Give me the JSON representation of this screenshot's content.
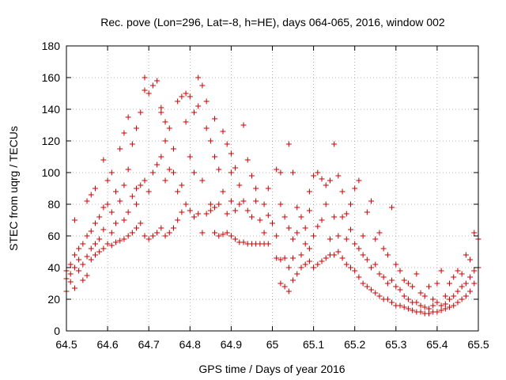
{
  "chart_data": {
    "type": "scatter",
    "title": "Rec. pove (Lon=296, Lat=-8, h=HE), days 064-065, 2016, window 002",
    "xlabel": "GPS time / Days of year 2016",
    "ylabel": "STEC from uqrg / TECUs",
    "xlim": [
      64.5,
      65.5
    ],
    "ylim": [
      0,
      180
    ],
    "xticks": [
      "64.5",
      "64.6",
      "64.7",
      "64.8",
      "64.9",
      "65",
      "65.1",
      "65.2",
      "65.3",
      "65.4",
      "65.5"
    ],
    "yticks": [
      "0",
      "20",
      "40",
      "60",
      "80",
      "100",
      "120",
      "140",
      "160",
      "180"
    ],
    "grid": true,
    "marker": "+",
    "color": "#cc0000",
    "points": [
      [
        64.5,
        25
      ],
      [
        64.5,
        33
      ],
      [
        64.5,
        38
      ],
      [
        64.51,
        31
      ],
      [
        64.51,
        36
      ],
      [
        64.51,
        42
      ],
      [
        64.52,
        27
      ],
      [
        64.52,
        40
      ],
      [
        64.52,
        48
      ],
      [
        64.52,
        70
      ],
      [
        64.53,
        38
      ],
      [
        64.53,
        45
      ],
      [
        64.53,
        52
      ],
      [
        64.54,
        32
      ],
      [
        64.54,
        42
      ],
      [
        64.54,
        55
      ],
      [
        64.55,
        35
      ],
      [
        64.55,
        47
      ],
      [
        64.55,
        60
      ],
      [
        64.55,
        82
      ],
      [
        64.56,
        45
      ],
      [
        64.56,
        52
      ],
      [
        64.56,
        63
      ],
      [
        64.56,
        86
      ],
      [
        64.57,
        48
      ],
      [
        64.57,
        55
      ],
      [
        64.57,
        68
      ],
      [
        64.57,
        90
      ],
      [
        64.58,
        50
      ],
      [
        64.58,
        58
      ],
      [
        64.58,
        72
      ],
      [
        64.59,
        108
      ],
      [
        64.59,
        52
      ],
      [
        64.59,
        64
      ],
      [
        64.59,
        78
      ],
      [
        64.6,
        55
      ],
      [
        64.6,
        80
      ],
      [
        64.6,
        95
      ],
      [
        64.61,
        54
      ],
      [
        64.61,
        62
      ],
      [
        64.61,
        75
      ],
      [
        64.61,
        100
      ],
      [
        64.62,
        56
      ],
      [
        64.62,
        68
      ],
      [
        64.62,
        88
      ],
      [
        64.63,
        57
      ],
      [
        64.63,
        82
      ],
      [
        64.63,
        115
      ],
      [
        64.64,
        58
      ],
      [
        64.64,
        70
      ],
      [
        64.64,
        92
      ],
      [
        64.64,
        125
      ],
      [
        64.65,
        60
      ],
      [
        64.65,
        75
      ],
      [
        64.65,
        135
      ],
      [
        64.65,
        102
      ],
      [
        64.66,
        62
      ],
      [
        64.66,
        85
      ],
      [
        64.66,
        118
      ],
      [
        64.67,
        65
      ],
      [
        64.67,
        80
      ],
      [
        64.67,
        90
      ],
      [
        64.67,
        128
      ],
      [
        64.68,
        68
      ],
      [
        64.68,
        92
      ],
      [
        64.68,
        138
      ],
      [
        64.69,
        60
      ],
      [
        64.69,
        95
      ],
      [
        64.69,
        152
      ],
      [
        64.69,
        160
      ],
      [
        64.7,
        58
      ],
      [
        64.7,
        88
      ],
      [
        64.7,
        150
      ],
      [
        64.71,
        60
      ],
      [
        64.71,
        100
      ],
      [
        64.71,
        155
      ],
      [
        64.72,
        62
      ],
      [
        64.72,
        105
      ],
      [
        64.72,
        158
      ],
      [
        64.73,
        65
      ],
      [
        64.73,
        110
      ],
      [
        64.73,
        138
      ],
      [
        64.73,
        141
      ],
      [
        64.74,
        60
      ],
      [
        64.74,
        95
      ],
      [
        64.74,
        120
      ],
      [
        64.74,
        132
      ],
      [
        64.75,
        62
      ],
      [
        64.75,
        102
      ],
      [
        64.75,
        128
      ],
      [
        64.76,
        65
      ],
      [
        64.76,
        100
      ],
      [
        64.76,
        115
      ],
      [
        64.77,
        70
      ],
      [
        64.77,
        88
      ],
      [
        64.77,
        145
      ],
      [
        64.78,
        75
      ],
      [
        64.78,
        92
      ],
      [
        64.78,
        148
      ],
      [
        64.79,
        80
      ],
      [
        64.79,
        132
      ],
      [
        64.79,
        150
      ],
      [
        64.8,
        76
      ],
      [
        64.8,
        110
      ],
      [
        64.8,
        148
      ],
      [
        64.81,
        72
      ],
      [
        64.81,
        100
      ],
      [
        64.81,
        138
      ],
      [
        64.82,
        74
      ],
      [
        64.82,
        160
      ],
      [
        64.82,
        142
      ],
      [
        64.83,
        62
      ],
      [
        64.83,
        95
      ],
      [
        64.83,
        155
      ],
      [
        64.84,
        74
      ],
      [
        64.84,
        128
      ],
      [
        64.84,
        145
      ],
      [
        64.85,
        76
      ],
      [
        64.85,
        120
      ],
      [
        64.85,
        80
      ],
      [
        64.86,
        62
      ],
      [
        64.86,
        78
      ],
      [
        64.86,
        110
      ],
      [
        64.86,
        134
      ],
      [
        64.87,
        60
      ],
      [
        64.87,
        80
      ],
      [
        64.87,
        102
      ],
      [
        64.88,
        61
      ],
      [
        64.88,
        88
      ],
      [
        64.88,
        126
      ],
      [
        64.89,
        62
      ],
      [
        64.89,
        74
      ],
      [
        64.89,
        118
      ],
      [
        64.9,
        60
      ],
      [
        64.9,
        82
      ],
      [
        64.9,
        100
      ],
      [
        64.9,
        112
      ],
      [
        64.91,
        58
      ],
      [
        64.91,
        76
      ],
      [
        64.91,
        103
      ],
      [
        64.92,
        56
      ],
      [
        64.92,
        80
      ],
      [
        64.92,
        92
      ],
      [
        64.93,
        56
      ],
      [
        64.93,
        82
      ],
      [
        64.93,
        130
      ],
      [
        64.94,
        55
      ],
      [
        64.94,
        76
      ],
      [
        64.94,
        108
      ],
      [
        64.95,
        55
      ],
      [
        64.95,
        72
      ],
      [
        64.95,
        98
      ],
      [
        64.96,
        55
      ],
      [
        64.96,
        82
      ],
      [
        64.96,
        90
      ],
      [
        64.97,
        55
      ],
      [
        64.97,
        70
      ],
      [
        64.98,
        55
      ],
      [
        64.98,
        62
      ],
      [
        64.98,
        80
      ],
      [
        64.99,
        55
      ],
      [
        64.99,
        73
      ],
      [
        64.99,
        90
      ],
      [
        65.0,
        68
      ],
      [
        65.01,
        46
      ],
      [
        65.01,
        60
      ],
      [
        65.01,
        102
      ],
      [
        65.02,
        30
      ],
      [
        65.02,
        45
      ],
      [
        65.02,
        80
      ],
      [
        65.02,
        100
      ],
      [
        65.03,
        28
      ],
      [
        65.03,
        46
      ],
      [
        65.03,
        72
      ],
      [
        65.04,
        25
      ],
      [
        65.04,
        40
      ],
      [
        65.04,
        65
      ],
      [
        65.04,
        118
      ],
      [
        65.05,
        32
      ],
      [
        65.05,
        46
      ],
      [
        65.05,
        58
      ],
      [
        65.05,
        100
      ],
      [
        65.06,
        36
      ],
      [
        65.06,
        62
      ],
      [
        65.06,
        78
      ],
      [
        65.07,
        40
      ],
      [
        65.07,
        48
      ],
      [
        65.07,
        72
      ],
      [
        65.08,
        42
      ],
      [
        65.08,
        55
      ],
      [
        65.08,
        65
      ],
      [
        65.09,
        44
      ],
      [
        65.09,
        52
      ],
      [
        65.09,
        76
      ],
      [
        65.09,
        88
      ],
      [
        65.1,
        40
      ],
      [
        65.1,
        60
      ],
      [
        65.1,
        98
      ],
      [
        65.11,
        42
      ],
      [
        65.11,
        66
      ],
      [
        65.11,
        100
      ],
      [
        65.12,
        44
      ],
      [
        65.12,
        70
      ],
      [
        65.12,
        96
      ],
      [
        65.13,
        46
      ],
      [
        65.13,
        80
      ],
      [
        65.13,
        92
      ],
      [
        65.14,
        48
      ],
      [
        65.14,
        58
      ],
      [
        65.14,
        95
      ],
      [
        65.15,
        48
      ],
      [
        65.15,
        72
      ],
      [
        65.15,
        118
      ],
      [
        65.16,
        50
      ],
      [
        65.16,
        60
      ],
      [
        65.16,
        98
      ],
      [
        65.17,
        46
      ],
      [
        65.17,
        72
      ],
      [
        65.17,
        88
      ],
      [
        65.18,
        42
      ],
      [
        65.18,
        58
      ],
      [
        65.18,
        74
      ],
      [
        65.19,
        40
      ],
      [
        65.19,
        64
      ],
      [
        65.19,
        80
      ],
      [
        65.2,
        38
      ],
      [
        65.2,
        55
      ],
      [
        65.2,
        90
      ],
      [
        65.21,
        34
      ],
      [
        65.21,
        52
      ],
      [
        65.21,
        95
      ],
      [
        65.22,
        30
      ],
      [
        65.22,
        48
      ],
      [
        65.22,
        60
      ],
      [
        65.23,
        28
      ],
      [
        65.23,
        45
      ],
      [
        65.23,
        75
      ],
      [
        65.24,
        26
      ],
      [
        65.24,
        40
      ],
      [
        65.24,
        82
      ],
      [
        65.25,
        24
      ],
      [
        65.25,
        42
      ],
      [
        65.25,
        58
      ],
      [
        65.26,
        22
      ],
      [
        65.26,
        36
      ],
      [
        65.26,
        62
      ],
      [
        65.27,
        20
      ],
      [
        65.27,
        34
      ],
      [
        65.27,
        52
      ],
      [
        65.28,
        20
      ],
      [
        65.28,
        30
      ],
      [
        65.28,
        48
      ],
      [
        65.29,
        18
      ],
      [
        65.29,
        32
      ],
      [
        65.29,
        78
      ],
      [
        65.3,
        16
      ],
      [
        65.3,
        28
      ],
      [
        65.3,
        42
      ],
      [
        65.31,
        16
      ],
      [
        65.31,
        26
      ],
      [
        65.31,
        38
      ],
      [
        65.32,
        15
      ],
      [
        65.32,
        22
      ],
      [
        65.32,
        32
      ],
      [
        65.33,
        14
      ],
      [
        65.33,
        20
      ],
      [
        65.33,
        30
      ],
      [
        65.34,
        13
      ],
      [
        65.34,
        18
      ],
      [
        65.34,
        28
      ],
      [
        65.35,
        12
      ],
      [
        65.35,
        18
      ],
      [
        65.35,
        36
      ],
      [
        65.36,
        12
      ],
      [
        65.36,
        16
      ],
      [
        65.36,
        24
      ],
      [
        65.37,
        11
      ],
      [
        65.37,
        15
      ],
      [
        65.37,
        22
      ],
      [
        65.38,
        11
      ],
      [
        65.38,
        14
      ],
      [
        65.38,
        28
      ],
      [
        65.39,
        12
      ],
      [
        65.39,
        16
      ],
      [
        65.39,
        20
      ],
      [
        65.4,
        12
      ],
      [
        65.4,
        18
      ],
      [
        65.4,
        30
      ],
      [
        65.41,
        13
      ],
      [
        65.41,
        16
      ],
      [
        65.41,
        38
      ],
      [
        65.42,
        14
      ],
      [
        65.42,
        17
      ],
      [
        65.42,
        22
      ],
      [
        65.43,
        15
      ],
      [
        65.43,
        20
      ],
      [
        65.43,
        30
      ],
      [
        65.44,
        16
      ],
      [
        65.44,
        22
      ],
      [
        65.44,
        34
      ],
      [
        65.45,
        18
      ],
      [
        65.45,
        25
      ],
      [
        65.45,
        38
      ],
      [
        65.46,
        20
      ],
      [
        65.46,
        28
      ],
      [
        65.46,
        36
      ],
      [
        65.47,
        22
      ],
      [
        65.47,
        30
      ],
      [
        65.47,
        48
      ],
      [
        65.48,
        25
      ],
      [
        65.48,
        34
      ],
      [
        65.48,
        45
      ],
      [
        65.49,
        30
      ],
      [
        65.49,
        38
      ],
      [
        65.49,
        62
      ],
      [
        65.5,
        40
      ],
      [
        65.5,
        58
      ]
    ]
  }
}
